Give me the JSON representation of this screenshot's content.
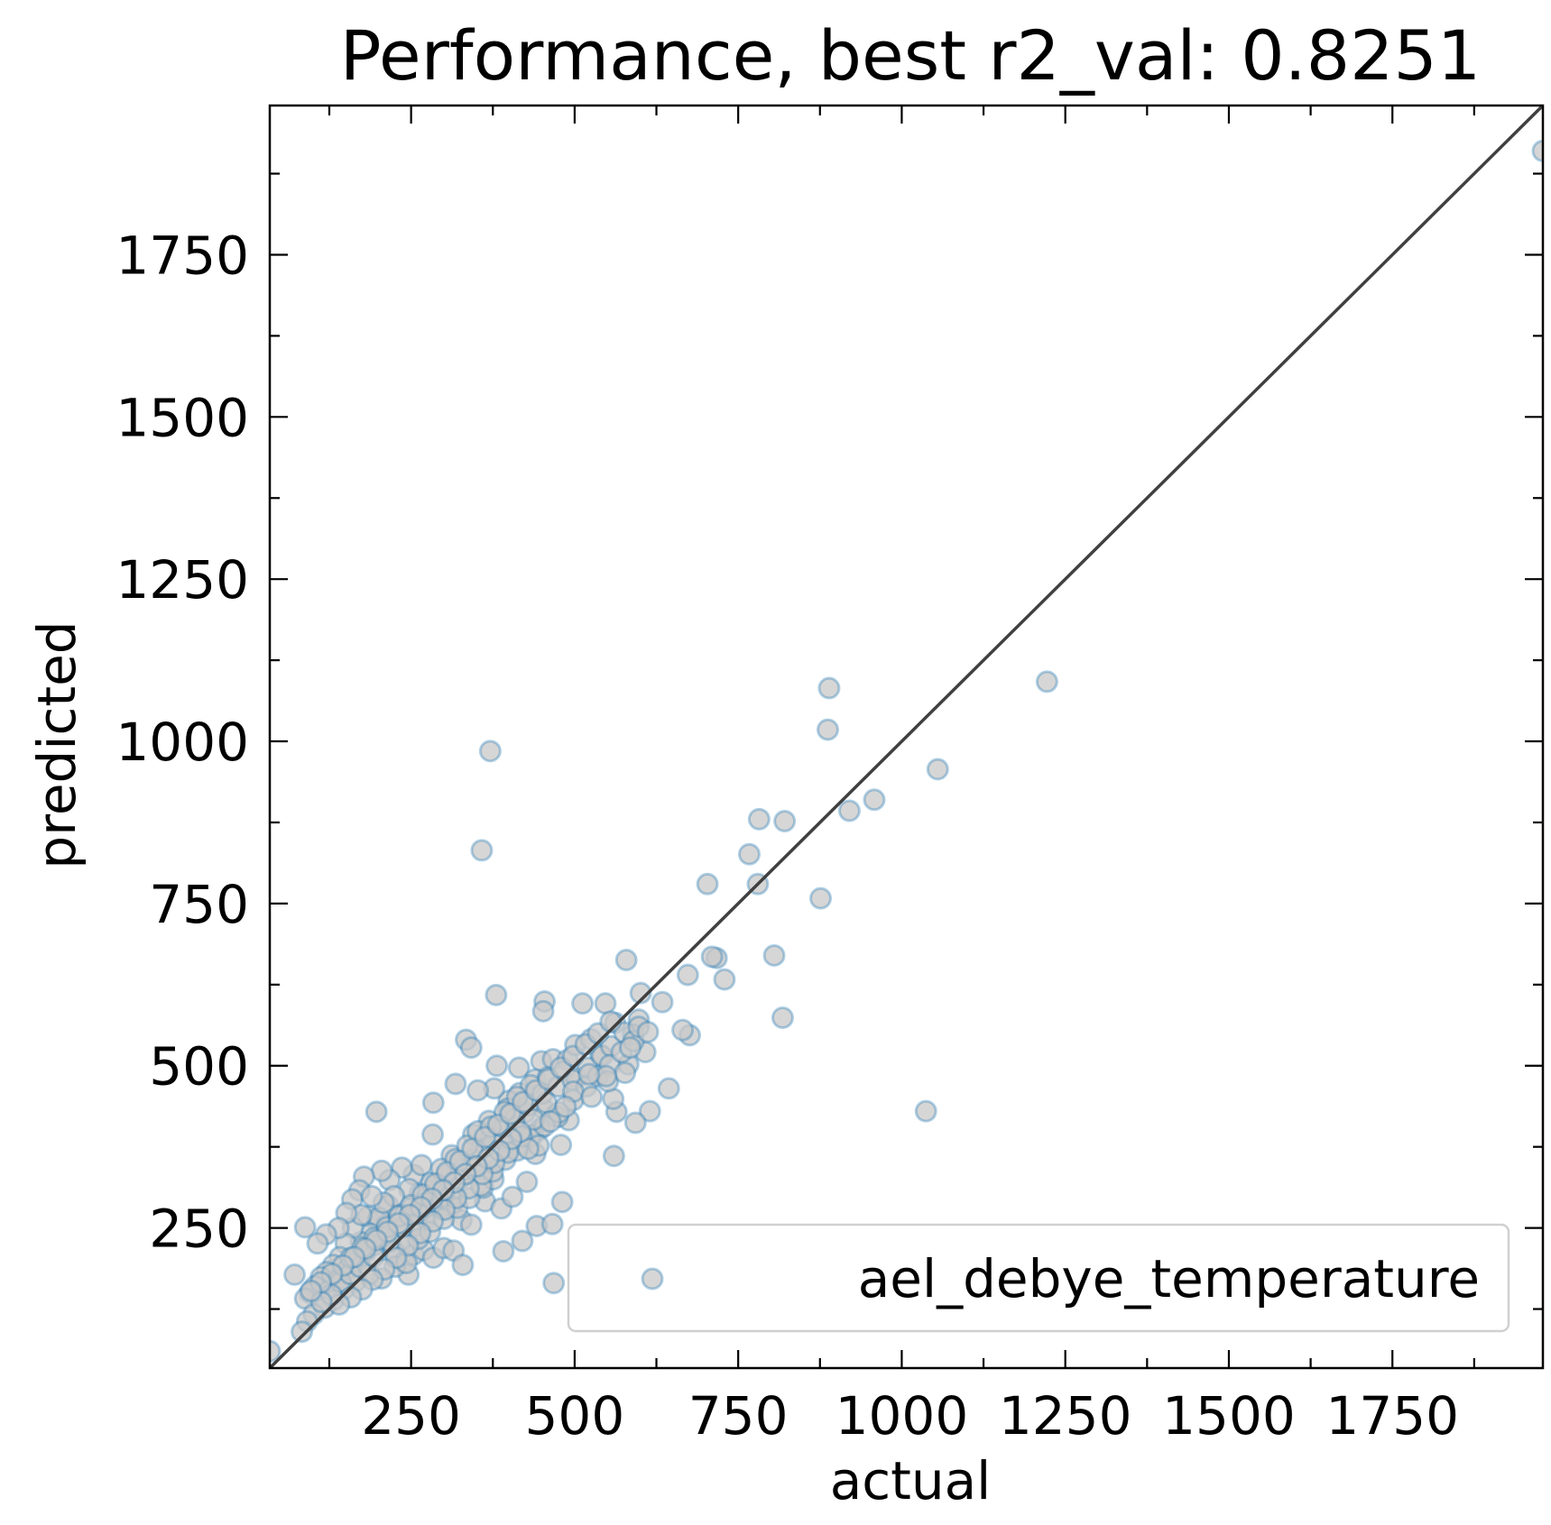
{
  "chart_data": {
    "type": "scatter",
    "title": "Performance, best r2_val: 0.8251",
    "xlabel": "actual",
    "ylabel": "predicted",
    "xlim": [
      34,
      1980
    ],
    "ylim": [
      34,
      1980
    ],
    "x_ticks": [
      250,
      500,
      750,
      1000,
      1250,
      1500,
      1750
    ],
    "y_ticks": [
      250,
      500,
      750,
      1000,
      1250,
      1500,
      1750
    ],
    "x_tick_labels": [
      "250",
      "500",
      "750",
      "1000",
      "1250",
      "1500",
      "1750"
    ],
    "y_tick_labels": [
      "250",
      "500",
      "750",
      "1000",
      "1250",
      "1500",
      "1750"
    ],
    "minor_tick_step": 125,
    "grid": false,
    "legend_position": "bottom-right",
    "reference_line": {
      "type": "identity",
      "color": "#404040"
    },
    "colors": {
      "marker_fill": "#c8c8c8",
      "marker_edge": "#1f77b4",
      "line": "#404040"
    },
    "series": [
      {
        "name": "ael_debye_temperature",
        "points": [
          [
            1980,
            1910
          ],
          [
            1222,
            1092
          ],
          [
            889,
            1082
          ],
          [
            887,
            1018
          ],
          [
            1055,
            957
          ],
          [
            958,
            910
          ],
          [
            920,
            893
          ],
          [
            782,
            880
          ],
          [
            821,
            877
          ],
          [
            767,
            826
          ],
          [
            780,
            780
          ],
          [
            703,
            780
          ],
          [
            876,
            758
          ],
          [
            371,
            985
          ],
          [
            358,
            832
          ],
          [
            717,
            666
          ],
          [
            710,
            668
          ],
          [
            805,
            670
          ],
          [
            579,
            663
          ],
          [
            729,
            633
          ],
          [
            673,
            640
          ],
          [
            634,
            598
          ],
          [
            601,
            612
          ],
          [
            818,
            574
          ],
          [
            676,
            547
          ],
          [
            665,
            555
          ],
          [
            1037,
            430
          ],
          [
            380,
            609
          ],
          [
            454,
            599
          ],
          [
            452,
            584
          ],
          [
            512,
            596
          ],
          [
            547,
            596
          ],
          [
            562,
            566
          ],
          [
            598,
            571
          ],
          [
            589,
            548
          ],
          [
            334,
            540
          ],
          [
            342,
            528
          ],
          [
            564,
            429
          ],
          [
            559,
            449
          ],
          [
            615,
            430
          ],
          [
            644,
            465
          ],
          [
            593,
            412
          ],
          [
            608,
            521
          ],
          [
            560,
            361
          ],
          [
            197,
            429
          ],
          [
            479,
            378
          ],
          [
            381,
            500
          ],
          [
            415,
            497
          ],
          [
            449,
            507
          ],
          [
            467,
            510
          ],
          [
            489,
            509
          ],
          [
            501,
            532
          ],
          [
            525,
            541
          ],
          [
            539,
            517
          ],
          [
            582,
            502
          ],
          [
            440,
            479
          ],
          [
            459,
            482
          ],
          [
            483,
            491
          ],
          [
            503,
            481
          ],
          [
            416,
            458
          ],
          [
            433,
            470
          ],
          [
            399,
            446
          ],
          [
            377,
            465
          ],
          [
            352,
            462
          ],
          [
            318,
            472
          ],
          [
            284,
            443
          ],
          [
            345,
            394
          ],
          [
            369,
            415
          ],
          [
            398,
            434
          ],
          [
            424,
            428
          ],
          [
            453,
            433
          ],
          [
            470,
            423
          ],
          [
            491,
            416
          ],
          [
            447,
            402
          ],
          [
            436,
            393
          ],
          [
            418,
            379
          ],
          [
            440,
            364
          ],
          [
            474,
            421
          ],
          [
            408,
            405
          ],
          [
            386,
            387
          ],
          [
            362,
            374
          ],
          [
            344,
            356
          ],
          [
            330,
            330
          ],
          [
            312,
            362
          ],
          [
            303,
            331
          ],
          [
            290,
            318
          ],
          [
            280,
            307
          ],
          [
            263,
            303
          ],
          [
            254,
            332
          ],
          [
            236,
            343
          ],
          [
            217,
            324
          ],
          [
            205,
            338
          ],
          [
            178,
            329
          ],
          [
            171,
            308
          ],
          [
            160,
            294
          ],
          [
            184,
            268
          ],
          [
            199,
            261
          ],
          [
            213,
            255
          ],
          [
            227,
            247
          ],
          [
            245,
            230
          ],
          [
            259,
            254
          ],
          [
            273,
            264
          ],
          [
            296,
            279
          ],
          [
            312,
            284
          ],
          [
            327,
            262
          ],
          [
            342,
            255
          ],
          [
            363,
            291
          ],
          [
            388,
            280
          ],
          [
            405,
            298
          ],
          [
            427,
            321
          ],
          [
            360,
            312
          ],
          [
            376,
            325
          ],
          [
            315,
            301
          ],
          [
            295,
            297
          ],
          [
            268,
            278
          ],
          [
            252,
            282
          ],
          [
            231,
            271
          ],
          [
            215,
            285
          ],
          [
            201,
            266
          ],
          [
            188,
            241
          ],
          [
            173,
            228
          ],
          [
            161,
            250
          ],
          [
            150,
            226
          ],
          [
            141,
            205
          ],
          [
            131,
            193
          ],
          [
            121,
            182
          ],
          [
            112,
            174
          ],
          [
            103,
            160
          ],
          [
            95,
            150
          ],
          [
            88,
            141
          ],
          [
            125,
            154
          ],
          [
            139,
            171
          ],
          [
            154,
            187
          ],
          [
            168,
            197
          ],
          [
            181,
            213
          ],
          [
            196,
            224
          ],
          [
            210,
            234
          ],
          [
            224,
            213
          ],
          [
            239,
            197
          ],
          [
            254,
            209
          ],
          [
            269,
            216
          ],
          [
            284,
            204
          ],
          [
            300,
            219
          ],
          [
            315,
            215
          ],
          [
            329,
            193
          ],
          [
            246,
            178
          ],
          [
            225,
            190
          ],
          [
            205,
            172
          ],
          [
            186,
            179
          ],
          [
            166,
            168
          ],
          [
            148,
            156
          ],
          [
            132,
            139
          ],
          [
            118,
            127
          ],
          [
            101,
            117
          ],
          [
            91,
            106
          ],
          [
            83,
            90
          ],
          [
            72,
            178
          ],
          [
            88,
            251
          ],
          [
            391,
            214
          ],
          [
            420,
            230
          ],
          [
            442,
            253
          ],
          [
            466,
            256
          ],
          [
            481,
            290
          ],
          [
            468,
            165
          ],
          [
            34,
            60
          ],
          [
            142,
            167
          ],
          [
            157,
            179
          ],
          [
            172,
            190
          ],
          [
            193,
            206
          ],
          [
            218,
            229
          ],
          [
            238,
            251
          ],
          [
            260,
            273
          ],
          [
            282,
            290
          ],
          [
            303,
            309
          ],
          [
            323,
            325
          ],
          [
            342,
            345
          ],
          [
            357,
            372
          ],
          [
            373,
            389
          ],
          [
            391,
            405
          ],
          [
            409,
            418
          ],
          [
            429,
            439
          ],
          [
            451,
            457
          ],
          [
            475,
            468
          ],
          [
            497,
            478
          ],
          [
            520,
            497
          ],
          [
            542,
            515
          ],
          [
            556,
            530
          ],
          [
            576,
            551
          ],
          [
            266,
            347
          ],
          [
            281,
            320
          ],
          [
            296,
            341
          ],
          [
            318,
            356
          ],
          [
            336,
            377
          ],
          [
            352,
            399
          ],
          [
            372,
            406
          ],
          [
            393,
            429
          ],
          [
            412,
            452
          ],
          [
            283,
            394
          ],
          [
            247,
            310
          ],
          [
            269,
            287
          ],
          [
            224,
            299
          ],
          [
            208,
            289
          ],
          [
            190,
            299
          ],
          [
            174,
            270
          ],
          [
            151,
            273
          ],
          [
            139,
            250
          ],
          [
            120,
            240
          ],
          [
            107,
            226
          ],
          [
            243,
            196
          ],
          [
            261,
            233
          ],
          [
            279,
            244
          ],
          [
            300,
            264
          ],
          [
            321,
            281
          ],
          [
            339,
            296
          ],
          [
            357,
            315
          ],
          [
            375,
            337
          ],
          [
            394,
            355
          ],
          [
            412,
            369
          ],
          [
            432,
            391
          ],
          [
            454,
            407
          ],
          [
            476,
            428
          ],
          [
            498,
            447
          ],
          [
            518,
            468
          ],
          [
            536,
            484
          ],
          [
            554,
            501
          ],
          [
            572,
            521
          ],
          [
            590,
            538
          ],
          [
            457,
            443
          ],
          [
            437,
            417
          ],
          [
            419,
            391
          ],
          [
            398,
            366
          ],
          [
            377,
            350
          ],
          [
            359,
            333
          ],
          [
            338,
            311
          ],
          [
            319,
            296
          ],
          [
            301,
            278
          ],
          [
            283,
            260
          ],
          [
            264,
            242
          ],
          [
            245,
            223
          ],
          [
            227,
            204
          ],
          [
            209,
            186
          ],
          [
            191,
            170
          ],
          [
            175,
            155
          ],
          [
            158,
            143
          ],
          [
            140,
            132
          ],
          [
            128,
            147
          ],
          [
            113,
            136
          ],
          [
            158,
            204
          ],
          [
            176,
            220
          ],
          [
            194,
            235
          ],
          [
            213,
            251
          ],
          [
            232,
            268
          ],
          [
            250,
            285
          ],
          [
            268,
            301
          ],
          [
            287,
            318
          ],
          [
            305,
            336
          ],
          [
            325,
            353
          ],
          [
            344,
            372
          ],
          [
            363,
            390
          ],
          [
            383,
            409
          ],
          [
            402,
            426
          ],
          [
            421,
            444
          ],
          [
            441,
            462
          ],
          [
            460,
            479
          ],
          [
            479,
            497
          ],
          [
            498,
            515
          ],
          [
            517,
            533
          ],
          [
            536,
            550
          ],
          [
            555,
            568
          ],
          [
            498,
            460
          ],
          [
            526,
            452
          ],
          [
            551,
            476
          ],
          [
            577,
            489
          ],
          [
            598,
            560
          ],
          [
            612,
            552
          ],
          [
            585,
            528
          ],
          [
            548,
            484
          ],
          [
            522,
            487
          ],
          [
            486,
            437
          ],
          [
            463,
            414
          ],
          [
            445,
            377
          ],
          [
            429,
            372
          ],
          [
            417,
            398
          ],
          [
            403,
            387
          ],
          [
            385,
            369
          ],
          [
            368,
            357
          ],
          [
            350,
            345
          ],
          [
            333,
            333
          ],
          [
            316,
            320
          ],
          [
            299,
            308
          ],
          [
            282,
            295
          ],
          [
            265,
            282
          ],
          [
            248,
            270
          ],
          [
            231,
            257
          ],
          [
            214,
            244
          ],
          [
            197,
            231
          ],
          [
            180,
            218
          ],
          [
            163,
            205
          ],
          [
            146,
            192
          ],
          [
            129,
            179
          ],
          [
            112,
            166
          ],
          [
            97,
            153
          ]
        ]
      }
    ]
  }
}
